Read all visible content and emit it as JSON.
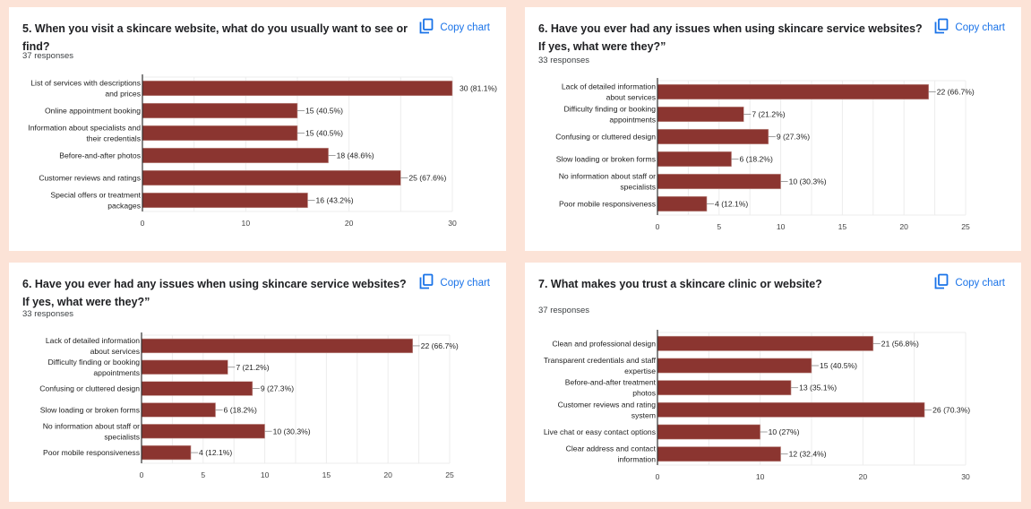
{
  "copy_label": "Copy chart",
  "icons": {
    "copy": "copy-icon"
  },
  "colors": {
    "background": "#fce3d7",
    "bar": "#8b3530",
    "accent": "#1a73e8"
  },
  "panels": [
    {
      "title": "5.  When you visit a skincare website, what do you usually want to see or find?",
      "responses": "37 responses"
    },
    {
      "title": "6.  Have you ever had any issues ‏when using skincare service websites? If yes, what were they?”",
      "responses": "33 responses"
    },
    {
      "title": "6.  Have you ever had any issues ‏when using skincare service websites? If yes, what were they?”",
      "responses": "33 responses"
    },
    {
      "title": "7. What makes you trust a skincare clinic or website?",
      "responses": "37 responses"
    }
  ],
  "chart_data": [
    {
      "type": "bar",
      "orientation": "horizontal",
      "title": "5.  When you visit a skincare website, what do you usually want to see or find?",
      "categories": [
        [
          "List of services with descriptions",
          "and prices"
        ],
        [
          "Online appointment booking"
        ],
        [
          "Information about specialists and",
          "their credentials"
        ],
        [
          "Before-and-after photos"
        ],
        [
          "Customer reviews and ratings"
        ],
        [
          "Special offers or treatment",
          "packages"
        ]
      ],
      "values": [
        30,
        15,
        15,
        18,
        25,
        16
      ],
      "labels": [
        "30 (81.1%)",
        "15 (40.5%)",
        "15 (40.5%)",
        "18 (48.6%)",
        "25 (67.6%)",
        "16 (43.2%)"
      ],
      "xlim": [
        0,
        30
      ],
      "xticks": [
        0,
        10,
        20,
        30
      ],
      "grid": true
    },
    {
      "type": "bar",
      "orientation": "horizontal",
      "title": "6.  Have you ever had any issues when using skincare service websites? If yes, what were they?",
      "categories": [
        [
          "Lack of detailed information",
          "about services"
        ],
        [
          "Difficulty finding or booking",
          "appointments"
        ],
        [
          "Confusing or cluttered design"
        ],
        [
          "Slow loading or broken forms"
        ],
        [
          "No information about staff or",
          "specialists"
        ],
        [
          "Poor mobile responsiveness"
        ]
      ],
      "values": [
        22,
        7,
        9,
        6,
        10,
        4
      ],
      "labels": [
        "22 (66.7%)",
        "7 (21.2%)",
        "9 (27.3%)",
        "6 (18.2%)",
        "10 (30.3%)",
        "4 (12.1%)"
      ],
      "xlim": [
        0,
        25
      ],
      "xticks": [
        0,
        5,
        10,
        15,
        20,
        25
      ],
      "grid": true
    },
    {
      "type": "bar",
      "orientation": "horizontal",
      "title": "6.  Have you ever had any issues when using skincare service websites? If yes, what were they?",
      "categories": [
        [
          "Lack of detailed information",
          "about services"
        ],
        [
          "Difficulty finding or booking",
          "appointments"
        ],
        [
          "Confusing or cluttered design"
        ],
        [
          "Slow loading or broken forms"
        ],
        [
          "No information about staff or",
          "specialists"
        ],
        [
          "Poor mobile responsiveness"
        ]
      ],
      "values": [
        22,
        7,
        9,
        6,
        10,
        4
      ],
      "labels": [
        "22 (66.7%)",
        "7 (21.2%)",
        "9 (27.3%)",
        "6 (18.2%)",
        "10 (30.3%)",
        "4 (12.1%)"
      ],
      "xlim": [
        0,
        25
      ],
      "xticks": [
        0,
        5,
        10,
        15,
        20,
        25
      ],
      "grid": true
    },
    {
      "type": "bar",
      "orientation": "horizontal",
      "title": "7. What makes you trust a skincare clinic or website?",
      "categories": [
        [
          "Clean and professional design"
        ],
        [
          "Transparent credentials and staff",
          "expertise"
        ],
        [
          "Before-and-after treatment",
          "photos"
        ],
        [
          "Customer reviews and rating",
          "system"
        ],
        [
          "Live chat or easy contact options"
        ],
        [
          "Clear address and contact",
          "information"
        ]
      ],
      "values": [
        21,
        15,
        13,
        26,
        10,
        12
      ],
      "labels": [
        "21 (56.8%)",
        "15 (40.5%)",
        "13 (35.1%)",
        "26 (70.3%)",
        "10 (27%)",
        "12 (32.4%)"
      ],
      "xlim": [
        0,
        30
      ],
      "xticks": [
        0,
        10,
        20,
        30
      ],
      "grid": true
    }
  ]
}
